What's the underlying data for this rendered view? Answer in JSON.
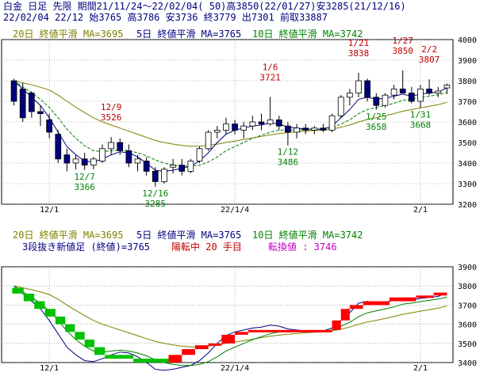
{
  "header": {
    "line1": "白金 日足 先限 期間21/11/24～22/02/04( 50)高3850(22/01/27)安3285(21/12/16)",
    "line2": "22/02/04 22/12 始3765 高3786 安3736 終3779 出7301 前取33887"
  },
  "legend_ma": {
    "ma20": "20日 終値平滑 MA=3695",
    "ma5": "5日 終値平滑 MA=3765",
    "ma10": "10日 終値平滑 MA=3742"
  },
  "lower_legend": {
    "line2a": "3段抜き新値足 (終値)=3765",
    "line2b": "陽転中 20 手目",
    "line2c": "転換値 : 3746"
  },
  "colors": {
    "up_candle": "#ffffff",
    "down_candle": "#000080",
    "ma20": "#808000",
    "ma5": "#000080",
    "ma10": "#008000",
    "high_label": "#c00000",
    "low_label": "#008000",
    "renko_up": "#ff0000",
    "renko_down": "#00c000",
    "grid": "#808080"
  },
  "chart_data": [
    {
      "type": "candlestick",
      "title": "白金 日足 先限",
      "ylim": [
        3200,
        4000
      ],
      "yticks": [
        3200,
        3300,
        3400,
        3500,
        3600,
        3700,
        3800,
        3900,
        4000
      ],
      "xtick_labels": [
        {
          "label": "12/1",
          "index": 4
        },
        {
          "label": "22/1/4",
          "index": 25
        },
        {
          "label": "2/1",
          "index": 46
        }
      ],
      "ohlc": [
        [
          3800,
          3810,
          3680,
          3700
        ],
        [
          3760,
          3790,
          3600,
          3620
        ],
        [
          3740,
          3750,
          3620,
          3650
        ],
        [
          3650,
          3680,
          3580,
          3640
        ],
        [
          3610,
          3640,
          3520,
          3550
        ],
        [
          3540,
          3560,
          3400,
          3420
        ],
        [
          3440,
          3470,
          3360,
          3400
        ],
        [
          3400,
          3440,
          3370,
          3420
        ],
        [
          3420,
          3450,
          3366,
          3390
        ],
        [
          3390,
          3430,
          3370,
          3420
        ],
        [
          3410,
          3490,
          3400,
          3470
        ],
        [
          3470,
          3526,
          3440,
          3500
        ],
        [
          3500,
          3520,
          3440,
          3460
        ],
        [
          3460,
          3490,
          3380,
          3400
        ],
        [
          3400,
          3440,
          3360,
          3420
        ],
        [
          3410,
          3430,
          3340,
          3360
        ],
        [
          3360,
          3380,
          3285,
          3310
        ],
        [
          3310,
          3380,
          3300,
          3370
        ],
        [
          3380,
          3420,
          3350,
          3390
        ],
        [
          3390,
          3420,
          3340,
          3360
        ],
        [
          3360,
          3420,
          3350,
          3410
        ],
        [
          3410,
          3480,
          3400,
          3470
        ],
        [
          3470,
          3560,
          3460,
          3550
        ],
        [
          3550,
          3580,
          3520,
          3560
        ],
        [
          3560,
          3620,
          3540,
          3590
        ],
        [
          3590,
          3610,
          3540,
          3560
        ],
        [
          3560,
          3600,
          3520,
          3580
        ],
        [
          3580,
          3630,
          3560,
          3600
        ],
        [
          3600,
          3640,
          3560,
          3590
        ],
        [
          3590,
          3721,
          3580,
          3610
        ],
        [
          3610,
          3630,
          3560,
          3580
        ],
        [
          3580,
          3600,
          3486,
          3550
        ],
        [
          3550,
          3590,
          3520,
          3570
        ],
        [
          3570,
          3590,
          3540,
          3560
        ],
        [
          3560,
          3580,
          3540,
          3570
        ],
        [
          3570,
          3590,
          3550,
          3560
        ],
        [
          3560,
          3640,
          3550,
          3630
        ],
        [
          3630,
          3730,
          3620,
          3720
        ],
        [
          3720,
          3760,
          3680,
          3740
        ],
        [
          3740,
          3838,
          3720,
          3800
        ],
        [
          3800,
          3810,
          3700,
          3720
        ],
        [
          3720,
          3740,
          3658,
          3680
        ],
        [
          3680,
          3740,
          3670,
          3730
        ],
        [
          3730,
          3780,
          3710,
          3760
        ],
        [
          3760,
          3850,
          3740,
          3740
        ],
        [
          3740,
          3770,
          3690,
          3700
        ],
        [
          3700,
          3780,
          3668,
          3760
        ],
        [
          3760,
          3807,
          3730,
          3740
        ],
        [
          3740,
          3770,
          3720,
          3750
        ],
        [
          3765,
          3786,
          3736,
          3779
        ]
      ],
      "series": [
        {
          "name": "20日 終値平滑",
          "values": [
            3800,
            3790,
            3780,
            3768,
            3755,
            3730,
            3700,
            3672,
            3645,
            3620,
            3600,
            3585,
            3570,
            3555,
            3540,
            3525,
            3510,
            3500,
            3492,
            3486,
            3482,
            3482,
            3486,
            3492,
            3500,
            3507,
            3515,
            3522,
            3530,
            3537,
            3543,
            3548,
            3552,
            3555,
            3558,
            3560,
            3565,
            3574,
            3585,
            3600,
            3612,
            3620,
            3630,
            3640,
            3652,
            3660,
            3668,
            3676,
            3684,
            3695
          ]
        },
        {
          "name": "5日 終値平滑",
          "values": [
            3800,
            3760,
            3720,
            3680,
            3620,
            3550,
            3480,
            3440,
            3410,
            3405,
            3420,
            3440,
            3455,
            3450,
            3430,
            3400,
            3365,
            3360,
            3365,
            3375,
            3385,
            3410,
            3450,
            3500,
            3540,
            3560,
            3570,
            3580,
            3585,
            3595,
            3590,
            3575,
            3570,
            3565,
            3565,
            3565,
            3580,
            3620,
            3660,
            3710,
            3720,
            3710,
            3715,
            3725,
            3735,
            3725,
            3735,
            3740,
            3745,
            3765
          ]
        },
        {
          "name": "10日 終値平滑",
          "values": [
            3800,
            3770,
            3740,
            3710,
            3670,
            3620,
            3565,
            3520,
            3485,
            3460,
            3455,
            3460,
            3465,
            3460,
            3450,
            3435,
            3415,
            3400,
            3390,
            3385,
            3385,
            3390,
            3405,
            3430,
            3460,
            3480,
            3500,
            3520,
            3535,
            3550,
            3560,
            3560,
            3562,
            3562,
            3563,
            3563,
            3570,
            3590,
            3610,
            3640,
            3660,
            3670,
            3680,
            3690,
            3705,
            3710,
            3718,
            3725,
            3732,
            3742
          ]
        }
      ],
      "annotations": [
        {
          "text": "12/9",
          "value": 3526,
          "index": 11,
          "kind": "high"
        },
        {
          "text": "12/7",
          "value": 3366,
          "index": 8,
          "kind": "low"
        },
        {
          "text": "12/16",
          "value": 3285,
          "index": 16,
          "kind": "low"
        },
        {
          "text": "1/6",
          "value": 3721,
          "index": 29,
          "kind": "high"
        },
        {
          "text": "1/12",
          "value": 3486,
          "index": 31,
          "kind": "low"
        },
        {
          "text": "1/21",
          "value": 3838,
          "index": 39,
          "kind": "high"
        },
        {
          "text": "1/25",
          "value": 3658,
          "index": 41,
          "kind": "low"
        },
        {
          "text": "1/27",
          "value": 3850,
          "index": 44,
          "kind": "high"
        },
        {
          "text": "1/31",
          "value": 3668,
          "index": 46,
          "kind": "low"
        },
        {
          "text": "2/2",
          "value": 3807,
          "index": 47,
          "kind": "high"
        }
      ]
    },
    {
      "type": "new-price-bars",
      "ylim": [
        3400,
        3900
      ],
      "yticks": [
        3400,
        3500,
        3600,
        3700,
        3800,
        3900
      ],
      "xtick_labels": [
        {
          "label": "12/1",
          "index": 4
        },
        {
          "label": "22/1/4",
          "index": 25
        },
        {
          "label": "2/1",
          "index": 46
        }
      ],
      "bricks": [
        {
          "dir": "down",
          "from": 3790,
          "to": 3760,
          "start": 0.3,
          "end": 1.6
        },
        {
          "dir": "down",
          "from": 3760,
          "to": 3720,
          "start": 1.6,
          "end": 2.8
        },
        {
          "dir": "down",
          "from": 3720,
          "to": 3680,
          "start": 2.8,
          "end": 4.0
        },
        {
          "dir": "down",
          "from": 3680,
          "to": 3640,
          "start": 4.0,
          "end": 5.2
        },
        {
          "dir": "down",
          "from": 3640,
          "to": 3600,
          "start": 5.2,
          "end": 6.3
        },
        {
          "dir": "down",
          "from": 3600,
          "to": 3560,
          "start": 6.3,
          "end": 7.4
        },
        {
          "dir": "down",
          "from": 3560,
          "to": 3520,
          "start": 7.4,
          "end": 8.5
        },
        {
          "dir": "down",
          "from": 3520,
          "to": 3480,
          "start": 8.5,
          "end": 9.6
        },
        {
          "dir": "down",
          "from": 3480,
          "to": 3440,
          "start": 9.6,
          "end": 10.8
        },
        {
          "dir": "down",
          "from": 3440,
          "to": 3420,
          "start": 10.8,
          "end": 14.0
        },
        {
          "dir": "down",
          "from": 3420,
          "to": 3400,
          "start": 14.0,
          "end": 18.0
        },
        {
          "dir": "up",
          "from": 3400,
          "to": 3440,
          "start": 18.0,
          "end": 19.5
        },
        {
          "dir": "up",
          "from": 3440,
          "to": 3470,
          "start": 19.5,
          "end": 21.0
        },
        {
          "dir": "up",
          "from": 3470,
          "to": 3490,
          "start": 21.0,
          "end": 22.5
        },
        {
          "dir": "up",
          "from": 3490,
          "to": 3500,
          "start": 22.5,
          "end": 24.0
        },
        {
          "dir": "up",
          "from": 3500,
          "to": 3545,
          "start": 24.0,
          "end": 25.5
        },
        {
          "dir": "up",
          "from": 3545,
          "to": 3560,
          "start": 25.5,
          "end": 27.0
        },
        {
          "dir": "up",
          "from": 3560,
          "to": 3570,
          "start": 27.0,
          "end": 36.5
        },
        {
          "dir": "up",
          "from": 3570,
          "to": 3620,
          "start": 36.5,
          "end": 37.5
        },
        {
          "dir": "up",
          "from": 3620,
          "to": 3680,
          "start": 37.5,
          "end": 38.5
        },
        {
          "dir": "up",
          "from": 3680,
          "to": 3700,
          "start": 38.5,
          "end": 40.0
        },
        {
          "dir": "up",
          "from": 3700,
          "to": 3720,
          "start": 40.0,
          "end": 43.0
        },
        {
          "dir": "up",
          "from": 3720,
          "to": 3740,
          "start": 43.0,
          "end": 46.0
        },
        {
          "dir": "up",
          "from": 3740,
          "to": 3750,
          "start": 46.0,
          "end": 48.0
        },
        {
          "dir": "up",
          "from": 3750,
          "to": 3765,
          "start": 48.0,
          "end": 49.5
        }
      ]
    }
  ]
}
